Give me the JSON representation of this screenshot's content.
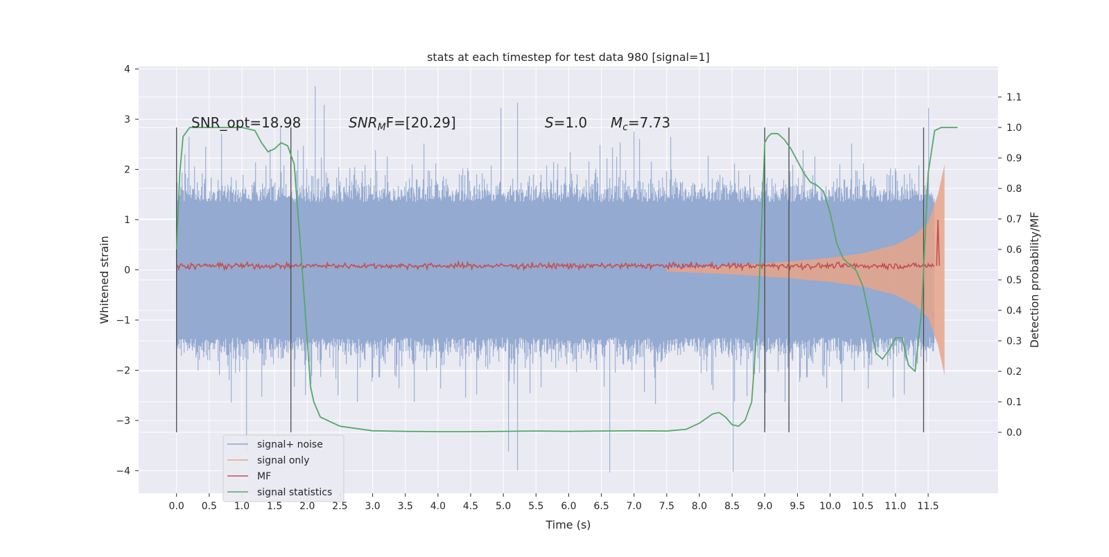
{
  "chart_data": {
    "type": "line",
    "title": "stats at each timestep for test data 980 [signal=1]",
    "xlabel": "Time (s)",
    "ylabel_left": "Whitened strain",
    "ylabel_right": "Detection probability/MF",
    "xlim": [
      -0.58,
      12.57
    ],
    "ylim_left": [
      -4.45,
      4.05
    ],
    "ylim_right": [
      -0.2,
      1.2
    ],
    "x_ticks": [
      "0.0",
      "0.5",
      "1.0",
      "1.5",
      "2.0",
      "2.5",
      "3.0",
      "3.5",
      "4.0",
      "4.5",
      "5.0",
      "5.5",
      "6.0",
      "6.5",
      "7.0",
      "7.5",
      "8.0",
      "8.5",
      "9.0",
      "9.5",
      "10.0",
      "10.5",
      "11.0",
      "11.5"
    ],
    "y_left_ticks": [
      "4",
      "3",
      "2",
      "1",
      "0",
      "−1",
      "−2",
      "−3",
      "−4"
    ],
    "y_right_ticks": [
      "1.1",
      "1.0",
      "0.9",
      "0.8",
      "0.7",
      "0.6",
      "0.5",
      "0.4",
      "0.3",
      "0.2",
      "0.1",
      "0.0"
    ],
    "annotations": {
      "snr_opt": "SNR_opt=18.98",
      "snr_mf_base": "SNR",
      "snr_mf_sub": "M",
      "snr_mf_rest": "F=[20.29]",
      "s_sym": "S",
      "s_val": "=1.0",
      "mc_sym": "M",
      "mc_sub": "c",
      "mc_val": "=7.73"
    },
    "vertical_lines_x": [
      0.0,
      1.75,
      9.0,
      9.37,
      11.43
    ],
    "signal_noise_envelope": {
      "x": [
        0.0,
        11.6
      ],
      "typical_max": 1.8,
      "typical_min": -1.8,
      "extreme_max": 3.7,
      "extreme_min": -4.1
    },
    "signal_only": {
      "x": [
        7.5,
        8.0,
        8.5,
        9.0,
        9.5,
        10.0,
        10.5,
        11.0,
        11.3,
        11.5,
        11.65,
        11.75
      ],
      "amplitude": [
        0.03,
        0.06,
        0.09,
        0.13,
        0.18,
        0.24,
        0.33,
        0.5,
        0.7,
        0.95,
        1.5,
        2.1
      ]
    },
    "mf": {
      "x": [
        0.0,
        11.6
      ],
      "level": 0.08,
      "peak_x": 11.65,
      "peak_value": 1.0
    },
    "signal_statistics": {
      "x": [
        0.0,
        0.05,
        0.1,
        0.2,
        0.3,
        0.5,
        1.0,
        1.2,
        1.3,
        1.4,
        1.5,
        1.6,
        1.7,
        1.8,
        1.9,
        2.0,
        2.05,
        2.1,
        2.2,
        2.5,
        3.0,
        3.5,
        4.0,
        4.5,
        5.0,
        5.5,
        6.0,
        6.5,
        7.0,
        7.5,
        7.8,
        8.0,
        8.2,
        8.3,
        8.4,
        8.5,
        8.6,
        8.7,
        8.8,
        8.9,
        9.0,
        9.05,
        9.1,
        9.2,
        9.3,
        9.4,
        9.5,
        9.6,
        9.7,
        9.8,
        9.9,
        10.0,
        10.1,
        10.2,
        10.3,
        10.4,
        10.5,
        10.6,
        10.7,
        10.8,
        10.9,
        11.0,
        11.1,
        11.2,
        11.3,
        11.4,
        11.5,
        11.6,
        11.7,
        11.8,
        11.95
      ],
      "values": [
        0.6,
        0.85,
        0.97,
        1.0,
        1.0,
        1.0,
        1.0,
        0.99,
        0.95,
        0.92,
        0.93,
        0.95,
        0.94,
        0.88,
        0.6,
        0.3,
        0.15,
        0.1,
        0.05,
        0.02,
        0.005,
        0.003,
        0.002,
        0.002,
        0.003,
        0.004,
        0.003,
        0.004,
        0.005,
        0.004,
        0.01,
        0.03,
        0.06,
        0.065,
        0.05,
        0.025,
        0.02,
        0.04,
        0.1,
        0.4,
        0.95,
        0.97,
        0.98,
        0.98,
        0.96,
        0.93,
        0.89,
        0.85,
        0.82,
        0.81,
        0.79,
        0.72,
        0.62,
        0.57,
        0.55,
        0.53,
        0.48,
        0.38,
        0.26,
        0.24,
        0.27,
        0.31,
        0.31,
        0.22,
        0.2,
        0.4,
        0.85,
        0.99,
        1.0,
        1.0,
        1.0
      ]
    },
    "legend": {
      "position": "lower-left",
      "items": [
        {
          "label": "signal+ noise",
          "color": "#8fa6cf"
        },
        {
          "label": "signal only",
          "color": "#e8a488"
        },
        {
          "label": "MF",
          "color": "#c44e52"
        },
        {
          "label": "signal statistics",
          "color": "#55a868"
        }
      ]
    },
    "colors": {
      "plot_background": "#eaeaf2",
      "grid": "#ffffff",
      "signal_noise": "#8fa6cf",
      "signal_only": "#e8a488",
      "mf": "#c44e52",
      "signal_statistics": "#55a868",
      "vertical_line": "#4a4a4a"
    }
  }
}
